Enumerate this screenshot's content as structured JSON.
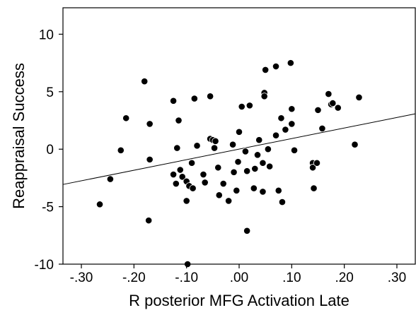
{
  "chart_data": {
    "type": "scatter",
    "title": "",
    "xlabel": "R posterior MFG Activation Late",
    "ylabel": "Reappraisal Success",
    "xlim": [
      -0.335,
      0.335
    ],
    "ylim": [
      -10,
      12.3
    ],
    "x_ticks": [
      {
        "value": -0.3,
        "label": "-.30"
      },
      {
        "value": -0.2,
        "label": "-.20"
      },
      {
        "value": -0.1,
        "label": "-.10"
      },
      {
        "value": 0.0,
        "label": ".00"
      },
      {
        "value": 0.1,
        "label": ".10"
      },
      {
        "value": 0.2,
        "label": ".20"
      },
      {
        "value": 0.3,
        "label": ".30"
      }
    ],
    "y_ticks": [
      {
        "value": 10,
        "label": "10"
      },
      {
        "value": 5,
        "label": "5"
      },
      {
        "value": 0,
        "label": "0"
      },
      {
        "value": -5,
        "label": "-5"
      },
      {
        "value": -10,
        "label": "-10"
      }
    ],
    "grid": false,
    "legend": "none",
    "point_color": "#000000",
    "fit_line": {
      "color": "#000000",
      "points": [
        [
          -0.335,
          -3.07
        ],
        [
          0.335,
          3.08
        ]
      ]
    },
    "series": [
      {
        "points": [
          [
            -0.265,
            -4.8
          ],
          [
            -0.245,
            -2.6
          ],
          [
            -0.225,
            -0.1
          ],
          [
            -0.215,
            2.7
          ],
          [
            -0.18,
            5.9
          ],
          [
            -0.172,
            -6.2
          ],
          [
            -0.17,
            2.2
          ],
          [
            -0.17,
            -0.9
          ],
          [
            -0.125,
            4.2
          ],
          [
            -0.125,
            -2.2
          ],
          [
            -0.12,
            -3.0
          ],
          [
            -0.118,
            0.1
          ],
          [
            -0.115,
            2.5
          ],
          [
            -0.112,
            -1.8
          ],
          [
            -0.108,
            -2.4
          ],
          [
            -0.1,
            -2.8
          ],
          [
            -0.1,
            -4.5
          ],
          [
            -0.098,
            -10.0
          ],
          [
            -0.095,
            -3.2
          ],
          [
            -0.09,
            -1.2
          ],
          [
            -0.088,
            -3.4
          ],
          [
            -0.085,
            4.4
          ],
          [
            -0.08,
            0.3
          ],
          [
            -0.068,
            -2.2
          ],
          [
            -0.065,
            -2.9
          ],
          [
            -0.055,
            4.6
          ],
          [
            -0.055,
            0.9
          ],
          [
            -0.05,
            0.8
          ],
          [
            -0.047,
            0.1
          ],
          [
            -0.045,
            0.7
          ],
          [
            -0.04,
            -1.6
          ],
          [
            -0.038,
            -4.0
          ],
          [
            -0.03,
            -3.0
          ],
          [
            -0.02,
            -4.5
          ],
          [
            -0.012,
            0.4
          ],
          [
            -0.01,
            -2.0
          ],
          [
            -0.005,
            -3.6
          ],
          [
            -0.002,
            -1.1
          ],
          [
            0.0,
            1.5
          ],
          [
            0.005,
            3.7
          ],
          [
            0.012,
            -0.2
          ],
          [
            0.015,
            -7.1
          ],
          [
            0.015,
            -1.9
          ],
          [
            0.02,
            3.8
          ],
          [
            0.028,
            -3.4
          ],
          [
            0.03,
            -1.7
          ],
          [
            0.035,
            -0.5
          ],
          [
            0.038,
            0.8
          ],
          [
            0.045,
            -1.2
          ],
          [
            0.045,
            -3.7
          ],
          [
            0.048,
            4.9
          ],
          [
            0.048,
            4.6
          ],
          [
            0.05,
            6.9
          ],
          [
            0.055,
            0.0
          ],
          [
            0.058,
            -1.5
          ],
          [
            0.07,
            7.2
          ],
          [
            0.07,
            1.2
          ],
          [
            0.075,
            -3.6
          ],
          [
            0.08,
            2.7
          ],
          [
            0.082,
            -4.6
          ],
          [
            0.088,
            1.7
          ],
          [
            0.098,
            7.5
          ],
          [
            0.1,
            3.5
          ],
          [
            0.1,
            2.2
          ],
          [
            0.105,
            -0.1
          ],
          [
            0.14,
            -1.2
          ],
          [
            0.14,
            -1.6
          ],
          [
            0.142,
            -3.4
          ],
          [
            0.148,
            -1.2
          ],
          [
            0.15,
            3.4
          ],
          [
            0.158,
            1.8
          ],
          [
            0.17,
            4.8
          ],
          [
            0.175,
            3.9
          ],
          [
            0.178,
            4.0
          ],
          [
            0.188,
            3.6
          ],
          [
            0.22,
            0.4
          ],
          [
            0.228,
            4.5
          ]
        ]
      }
    ]
  }
}
